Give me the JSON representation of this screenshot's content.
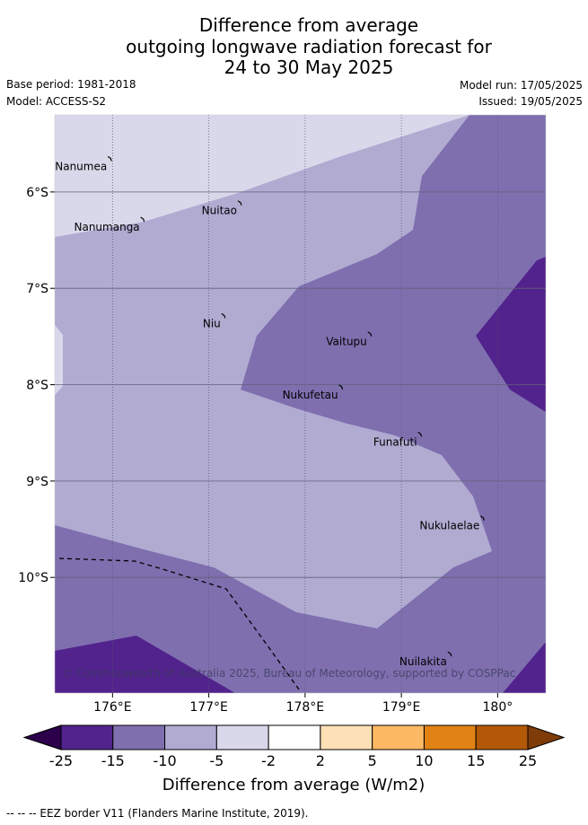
{
  "header": {
    "title_lines": [
      "Difference from average",
      "outgoing longwave radiation forecast for",
      "24 to 30 May 2025"
    ],
    "base_period": "Base period: 1981-2018",
    "model": "Model: ACCESS-S2",
    "model_run": "Model run: 17/05/2025",
    "issued": "Issued: 19/05/2025"
  },
  "map": {
    "lon_range": [
      175.4,
      180.5
    ],
    "lat_range": [
      -11.2,
      -5.2
    ],
    "x_ticks": [
      {
        "value": 176,
        "label": "176°E"
      },
      {
        "value": 177,
        "label": "177°E"
      },
      {
        "value": 178,
        "label": "178°E"
      },
      {
        "value": 179,
        "label": "179°E"
      },
      {
        "value": 180,
        "label": "180°"
      }
    ],
    "y_ticks": [
      {
        "value": -6,
        "label": "6°S"
      },
      {
        "value": -7,
        "label": "7°S"
      },
      {
        "value": -8,
        "label": "8°S"
      },
      {
        "value": -9,
        "label": "9°S"
      },
      {
        "value": -10,
        "label": "10°S"
      }
    ],
    "islands": [
      {
        "name": "Nanumea",
        "lon": 175.98,
        "lat": -5.66
      },
      {
        "name": "Nuitao",
        "lon": 177.33,
        "lat": -6.12
      },
      {
        "name": "Nanumanga",
        "lon": 176.32,
        "lat": -6.29
      },
      {
        "name": "Niu",
        "lon": 177.16,
        "lat": -7.29
      },
      {
        "name": "Vaitupu",
        "lon": 178.68,
        "lat": -7.48
      },
      {
        "name": "Nukufetau",
        "lon": 178.38,
        "lat": -8.03
      },
      {
        "name": "Funafuti",
        "lon": 179.2,
        "lat": -8.52
      },
      {
        "name": "Nukulaelae",
        "lon": 179.85,
        "lat": -9.39
      },
      {
        "name": "Nuilakita",
        "lon": 179.51,
        "lat": -10.8
      }
    ],
    "copyright": "© Commonwealth of Australia 2025, Bureau of Meteorology, supported by COSPPac"
  },
  "colorbar": {
    "ticks": [
      "-25",
      "-15",
      "-10",
      "-5",
      "-2",
      "2",
      "5",
      "10",
      "15",
      "25"
    ],
    "colors": [
      "#52238d",
      "#7f6faf",
      "#b1abd2",
      "#d8d8ea",
      "#ffffff",
      "#fee0b6",
      "#fdb863",
      "#e08214",
      "#b35806"
    ],
    "under_color": "#2d004b",
    "over_color": "#7f3b08",
    "label": "Difference from average (W/m2)"
  },
  "footer": "-- -- -- EEZ border V11 (Flanders Marine Institute, 2019)."
}
